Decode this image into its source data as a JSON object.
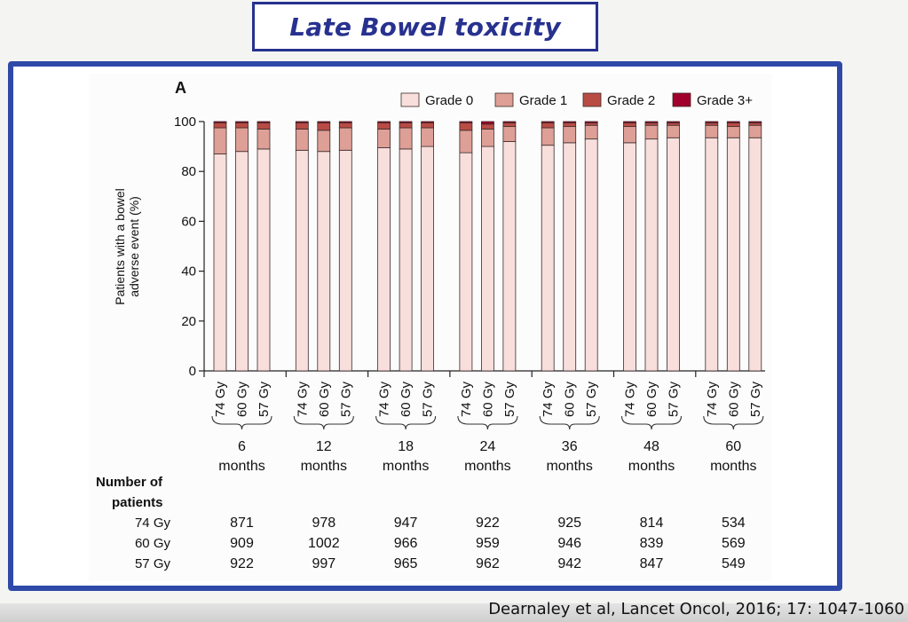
{
  "slide": {
    "title": "Late Bowel toxicity",
    "citation": "Dearnaley et al, Lancet Oncol, 2016; 17: 1047-1060"
  },
  "chart_data": {
    "type": "bar",
    "stacked": true,
    "panel_label": "A",
    "ylabel_lines": [
      "Patients with a bowel",
      "adverse event (%)"
    ],
    "ylim": [
      0,
      100
    ],
    "yticks": [
      0,
      20,
      40,
      60,
      80,
      100
    ],
    "grid": false,
    "legend_position": "top-right",
    "legend": [
      {
        "label": "Grade 0",
        "color": "#f8dfdc"
      },
      {
        "label": "Grade 1",
        "color": "#de9f96"
      },
      {
        "label": "Grade 2",
        "color": "#b94b45"
      },
      {
        "label": "Grade 3+",
        "color": "#a1002c"
      }
    ],
    "doses": [
      "74 Gy",
      "60 Gy",
      "57 Gy"
    ],
    "groups": [
      {
        "label": "6",
        "sublabel": "months",
        "grade0": [
          87,
          88,
          89
        ],
        "grade1": [
          10.5,
          9.5,
          8
        ],
        "grade2": [
          2,
          2,
          2.5
        ],
        "grade3": [
          0.5,
          0.5,
          0.5
        ]
      },
      {
        "label": "12",
        "sublabel": "months",
        "grade0": [
          88.5,
          88,
          88.5
        ],
        "grade1": [
          8.5,
          8.5,
          9
        ],
        "grade2": [
          2.5,
          3,
          2
        ],
        "grade3": [
          0.5,
          0.5,
          0.5
        ]
      },
      {
        "label": "18",
        "sublabel": "months",
        "grade0": [
          89.5,
          89,
          90
        ],
        "grade1": [
          7.5,
          8.5,
          7.5
        ],
        "grade2": [
          2.5,
          2,
          2
        ],
        "grade3": [
          0.5,
          0.5,
          0.5
        ]
      },
      {
        "label": "24",
        "sublabel": "months",
        "grade0": [
          87.5,
          90,
          92
        ],
        "grade1": [
          9,
          7,
          6
        ],
        "grade2": [
          3,
          2,
          1.5
        ],
        "grade3": [
          0.5,
          1,
          0.5
        ]
      },
      {
        "label": "36",
        "sublabel": "months",
        "grade0": [
          90.5,
          91.5,
          93
        ],
        "grade1": [
          7,
          6.5,
          5.5
        ],
        "grade2": [
          2,
          1.5,
          1
        ],
        "grade3": [
          0.5,
          0.5,
          0.5
        ]
      },
      {
        "label": "48",
        "sublabel": "months",
        "grade0": [
          91.5,
          93,
          93.5
        ],
        "grade1": [
          6.5,
          5.5,
          5
        ],
        "grade2": [
          1.5,
          1,
          1
        ],
        "grade3": [
          0.5,
          0.5,
          0.5
        ]
      },
      {
        "label": "60",
        "sublabel": "months",
        "grade0": [
          93.5,
          93.5,
          93.5
        ],
        "grade1": [
          5,
          4.5,
          5
        ],
        "grade2": [
          1,
          1.5,
          1
        ],
        "grade3": [
          0.5,
          0.5,
          0.5
        ]
      }
    ],
    "patients_table": {
      "title_lines": [
        "Number of",
        "patients"
      ],
      "rows": [
        {
          "label": "74 Gy",
          "values": [
            "871",
            "978",
            "947",
            "922",
            "925",
            "814",
            "534"
          ]
        },
        {
          "label": "60 Gy",
          "values": [
            "909",
            "1002",
            "966",
            "959",
            "946",
            "839",
            "569"
          ]
        },
        {
          "label": "57 Gy",
          "values": [
            "922",
            "997",
            "965",
            "962",
            "942",
            "847",
            "549"
          ]
        }
      ]
    }
  }
}
